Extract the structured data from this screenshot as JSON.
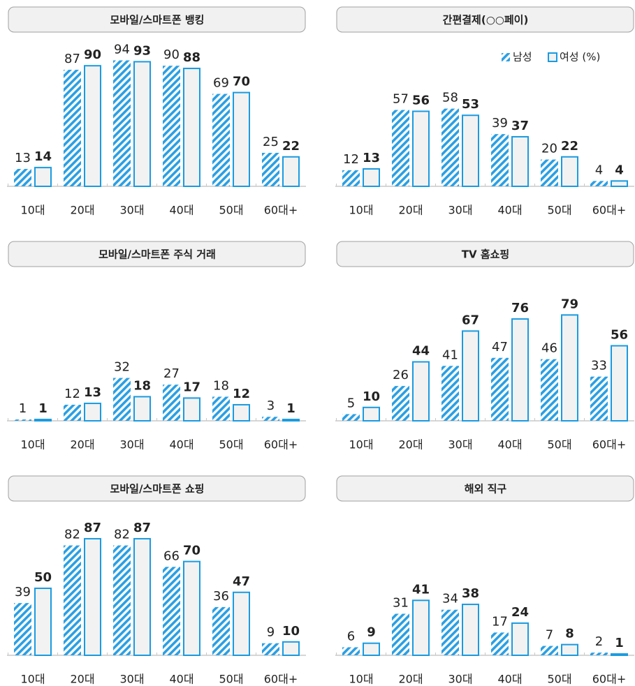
{
  "chart_data": [
    {
      "type": "bar",
      "title": "모바일/스마트폰 뱅킹",
      "categories": [
        "10대",
        "20대",
        "30대",
        "40대",
        "50대",
        "60대+"
      ],
      "ylim": [
        0,
        100
      ],
      "series": [
        {
          "color": "#2a9fe3",
          "values": [
            13,
            87,
            94,
            90,
            69,
            25
          ]
        },
        {
          "color": "#1a9be0",
          "values": [
            14,
            90,
            93,
            88,
            70,
            22
          ]
        }
      ]
    },
    {
      "type": "bar",
      "title": "간편결제(○○페이)",
      "categories": [
        "10대",
        "20대",
        "30대",
        "40대",
        "50대",
        "60대+"
      ],
      "ylim": [
        0,
        100
      ],
      "legend": "top-right",
      "series": [
        {
          "name": "남성",
          "color": "#2a9fe3",
          "values": [
            12,
            57,
            58,
            39,
            20,
            4
          ]
        },
        {
          "name": "여성 (%)",
          "color": "#1a9be0",
          "values": [
            13,
            56,
            53,
            37,
            22,
            4
          ]
        }
      ]
    },
    {
      "type": "bar",
      "title": "모바일/스마트폰 주식 거래",
      "categories": [
        "10대",
        "20대",
        "30대",
        "40대",
        "50대",
        "60대+"
      ],
      "ylim": [
        0,
        100
      ],
      "series": [
        {
          "color": "#2a9fe3",
          "values": [
            1,
            12,
            32,
            27,
            18,
            3
          ]
        },
        {
          "color": "#1a9be0",
          "values": [
            1,
            13,
            18,
            17,
            12,
            1
          ]
        }
      ]
    },
    {
      "type": "bar",
      "title": "TV 홈쇼핑",
      "categories": [
        "10대",
        "20대",
        "30대",
        "40대",
        "50대",
        "60대+"
      ],
      "ylim": [
        0,
        100
      ],
      "series": [
        {
          "color": "#2a9fe3",
          "values": [
            5,
            26,
            41,
            47,
            46,
            33
          ]
        },
        {
          "color": "#1a9be0",
          "values": [
            10,
            44,
            67,
            76,
            79,
            56
          ]
        }
      ]
    },
    {
      "type": "bar",
      "title": "모바일/스마트폰 쇼핑",
      "categories": [
        "10대",
        "20대",
        "30대",
        "40대",
        "50대",
        "60대+"
      ],
      "ylim": [
        0,
        100
      ],
      "series": [
        {
          "color": "#2a9fe3",
          "values": [
            39,
            82,
            82,
            66,
            36,
            9
          ]
        },
        {
          "color": "#1a9be0",
          "values": [
            50,
            87,
            87,
            70,
            47,
            10
          ]
        }
      ]
    },
    {
      "type": "bar",
      "title": "해외 직구",
      "categories": [
        "10대",
        "20대",
        "30대",
        "40대",
        "50대",
        "60대+"
      ],
      "ylim": [
        0,
        100
      ],
      "series": [
        {
          "color": "#2a9fe3",
          "values": [
            6,
            31,
            34,
            17,
            7,
            2
          ]
        },
        {
          "color": "#1a9be0",
          "values": [
            9,
            41,
            38,
            24,
            8,
            1
          ]
        }
      ]
    }
  ]
}
